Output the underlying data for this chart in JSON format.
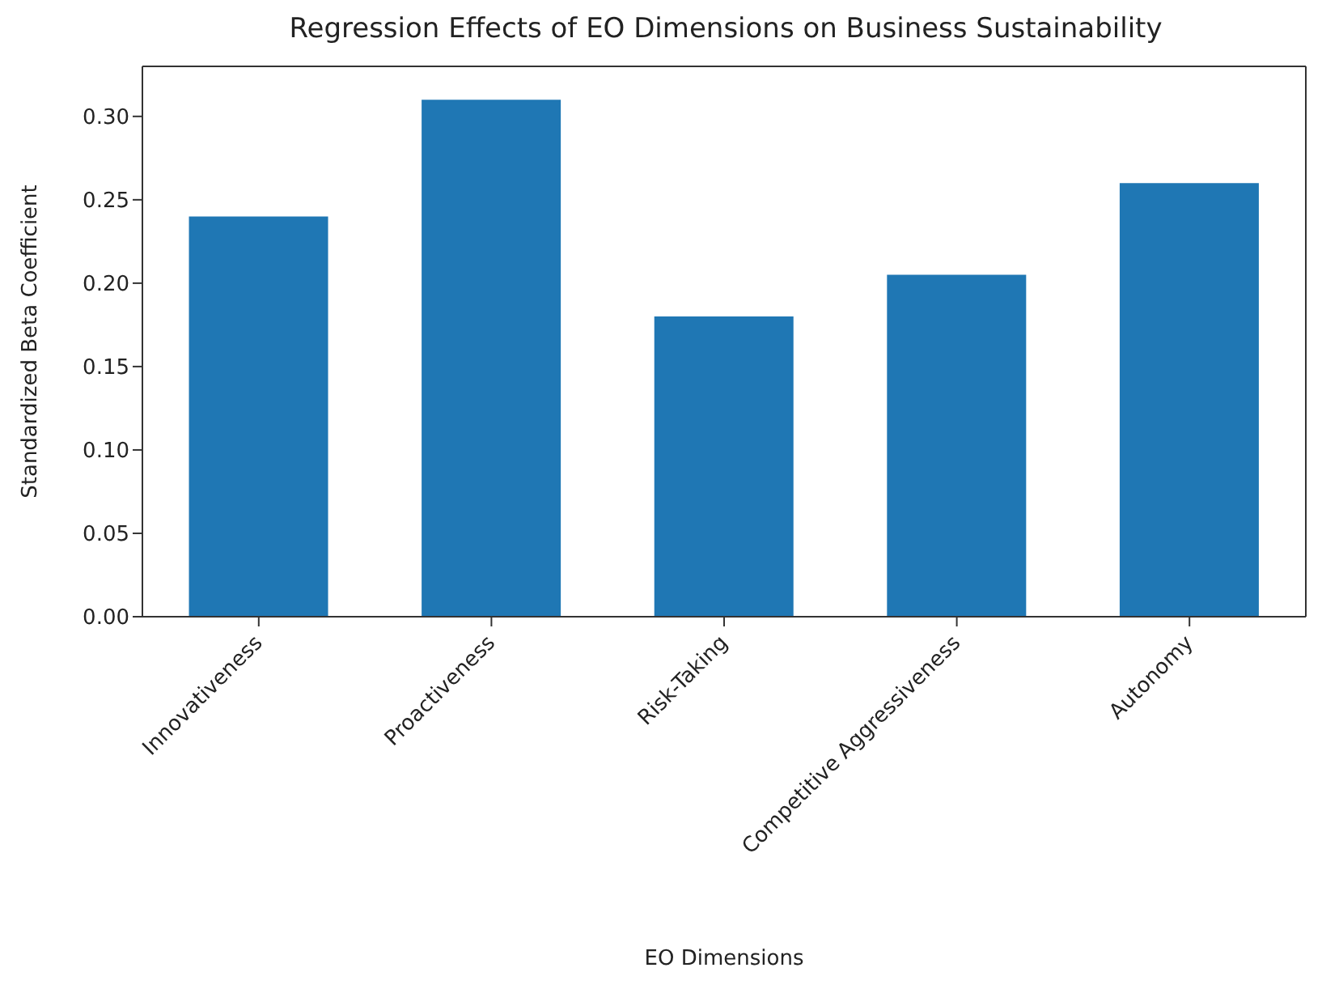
{
  "chart_data": {
    "type": "bar",
    "title": "Regression Effects of EO Dimensions on Business Sustainability",
    "xlabel": "EO Dimensions",
    "ylabel": "Standardized Beta Coefficient",
    "categories": [
      "Innovativeness",
      "Proactiveness",
      "Risk-Taking",
      "Competitive Aggressiveness",
      "Autonomy"
    ],
    "values": [
      0.24,
      0.31,
      0.18,
      0.205,
      0.26
    ],
    "color": "#1f77b4",
    "ylim": [
      0,
      0.33
    ],
    "yticks": [
      {
        "value": 0,
        "label": "0.00"
      },
      {
        "value": 0.05,
        "label": "0.05"
      },
      {
        "value": 0.1,
        "label": "0.10"
      },
      {
        "value": 0.15,
        "label": "0.15"
      },
      {
        "value": 0.2,
        "label": "0.20"
      },
      {
        "value": 0.25,
        "label": "0.25"
      },
      {
        "value": 0.3,
        "label": "0.30"
      }
    ],
    "grid": false,
    "legend": false
  }
}
